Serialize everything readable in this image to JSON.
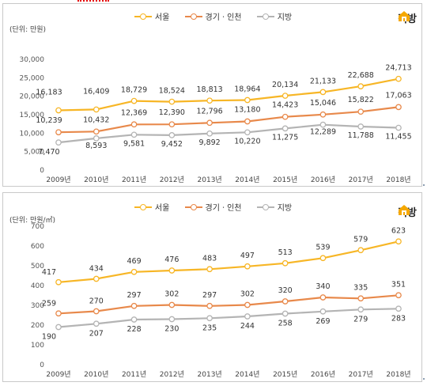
{
  "brand": {
    "logo_text": "직방",
    "accent": "#f5a800"
  },
  "chart_data": [
    {
      "type": "line",
      "unit_label": "(단위: 만원)",
      "categories": [
        "2009년",
        "2010년",
        "2011년",
        "2012년",
        "2013년",
        "2014년",
        "2015년",
        "2016년",
        "2017년",
        "2018년"
      ],
      "ylim": [
        0,
        30000
      ],
      "yticks": [
        0,
        5000,
        10000,
        15000,
        20000,
        25000,
        30000
      ],
      "ytick_labels": [
        "0",
        "5,000",
        "10,000",
        "15,000",
        "20,000",
        "25,000",
        "30,000"
      ],
      "grid": false,
      "legend": "top-center",
      "series": [
        {
          "name": "서울",
          "color": "#f7b626",
          "values": [
            16183,
            16409,
            18729,
            18524,
            18813,
            18964,
            20134,
            21133,
            22688,
            24713
          ],
          "labels": [
            "16,183",
            "16,409",
            "18,729",
            "18,524",
            "18,813",
            "18,964",
            "20,134",
            "21,133",
            "22,688",
            "24,713"
          ]
        },
        {
          "name": "경기ㆍ인천",
          "color": "#e8894b",
          "values": [
            10239,
            10432,
            12369,
            12390,
            12796,
            13180,
            14423,
            15046,
            15822,
            17063
          ],
          "labels": [
            "10,239",
            "10,432",
            "12,369",
            "12,390",
            "12,796",
            "13,180",
            "14,423",
            "15,046",
            "15,822",
            "17,063"
          ]
        },
        {
          "name": "지방",
          "color": "#b4b4b4",
          "values": [
            7470,
            8593,
            9581,
            9452,
            9892,
            10220,
            11275,
            12289,
            11788,
            11455
          ],
          "labels": [
            "7,470",
            "8,593",
            "9,581",
            "9,452",
            "9,892",
            "10,220",
            "11,275",
            "12,289",
            "11,788",
            "11,455"
          ]
        }
      ]
    },
    {
      "type": "line",
      "unit_label": "(단위: 만원/㎡)",
      "categories": [
        "2009년",
        "2010년",
        "2011년",
        "2012년",
        "2013년",
        "2014년",
        "2015년",
        "2016년",
        "2017년",
        "2018년"
      ],
      "ylim": [
        0,
        700
      ],
      "yticks": [
        0,
        100,
        200,
        300,
        400,
        500,
        600,
        700
      ],
      "ytick_labels": [
        "0",
        "100",
        "200",
        "300",
        "400",
        "500",
        "600",
        "700"
      ],
      "grid": false,
      "legend": "top-center",
      "series": [
        {
          "name": "서울",
          "color": "#f7b626",
          "values": [
            417,
            434,
            469,
            476,
            483,
            497,
            513,
            539,
            579,
            623
          ],
          "labels": [
            "417",
            "434",
            "469",
            "476",
            "483",
            "497",
            "513",
            "539",
            "579",
            "623"
          ]
        },
        {
          "name": "경기ㆍ인천",
          "color": "#e8894b",
          "values": [
            259,
            270,
            297,
            302,
            297,
            302,
            320,
            340,
            335,
            351
          ],
          "labels": [
            "259",
            "270",
            "297",
            "302",
            "297",
            "302",
            "320",
            "340",
            "335",
            "351"
          ]
        },
        {
          "name": "지방",
          "color": "#b4b4b4",
          "values": [
            190,
            207,
            228,
            230,
            235,
            244,
            258,
            269,
            279,
            283
          ],
          "labels": [
            "190",
            "207",
            "228",
            "230",
            "235",
            "244",
            "258",
            "269",
            "279",
            "283"
          ]
        }
      ]
    }
  ]
}
